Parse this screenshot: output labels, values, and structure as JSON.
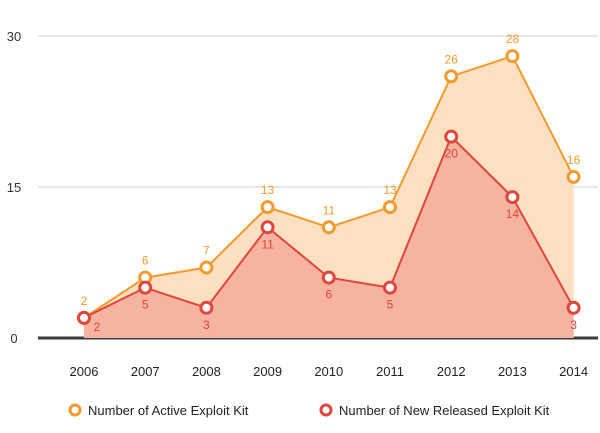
{
  "chart_data": {
    "type": "area",
    "title": "",
    "xlabel": "",
    "ylabel": "",
    "categories": [
      "2006",
      "2007",
      "2008",
      "2009",
      "2010",
      "2011",
      "2012",
      "2013",
      "2014"
    ],
    "ylim": [
      0,
      30
    ],
    "yticks": [
      0,
      15,
      30
    ],
    "series": [
      {
        "name": "Number of Active Exploit Kit",
        "values": [
          2,
          6,
          7,
          13,
          11,
          13,
          26,
          28,
          16
        ],
        "color": "#f39a2b",
        "fill": "#fde0c2"
      },
      {
        "name": "Number of New Released Exploit Kit",
        "values": [
          2,
          5,
          3,
          11,
          6,
          5,
          20,
          14,
          3
        ],
        "color": "#e2453c",
        "fill": "#f6b3a0"
      }
    ],
    "legend": "bottom"
  }
}
